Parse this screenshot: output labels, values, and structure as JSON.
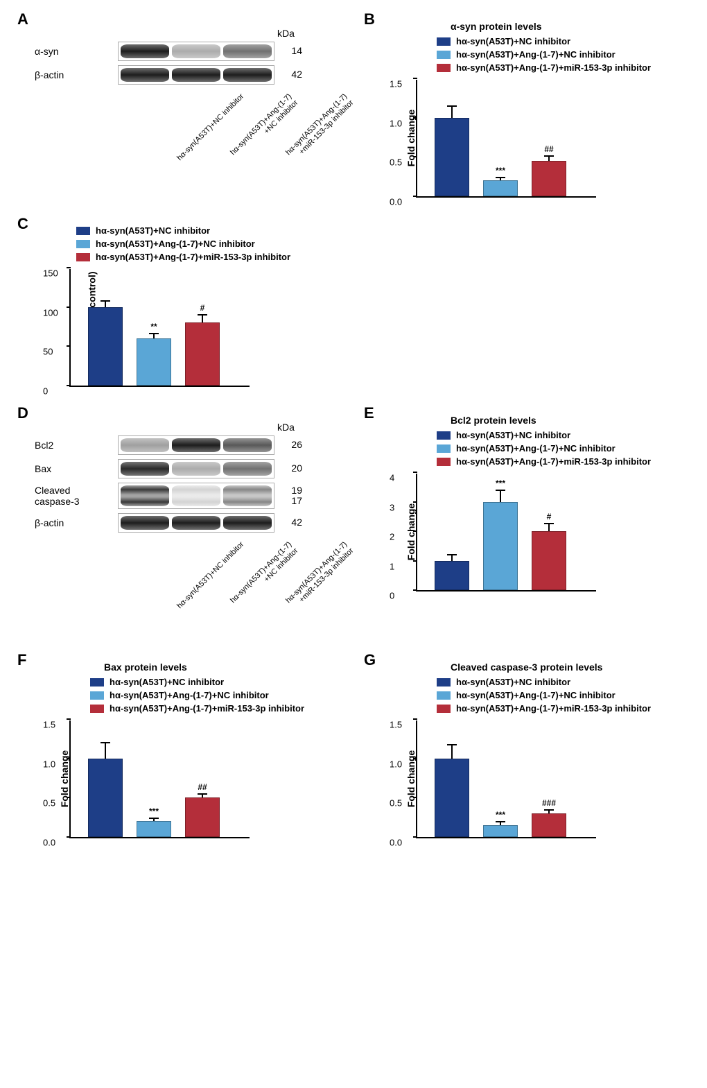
{
  "colors": {
    "group1": "#1e3e87",
    "group2": "#5aa6d6",
    "group3": "#b42e3a"
  },
  "groups": {
    "g1": "hα-syn(A53T)+NC inhibitor",
    "g2": "hα-syn(A53T)+Ang-(1-7)+NC inhibitor",
    "g3": "hα-syn(A53T)+Ang-(1-7)+miR-153-3p inhibitor"
  },
  "blot_lane_labels": {
    "l1a": "hα-syn(A53T)+NC inhibitor",
    "l2a": "hα-syn(A53T)+Ang-(1-7)",
    "l2b": "+NC inhibitor",
    "l3a": "hα-syn(A53T)+Ang-(1-7)",
    "l3b": "+miR-153-3p inhibitor"
  },
  "panelA": {
    "label": "A",
    "kda_header": "kDa",
    "rows": [
      {
        "name": "α-syn",
        "kda": "14",
        "intensities": [
          0.95,
          0.35,
          0.6
        ]
      },
      {
        "name": "β-actin",
        "kda": "42",
        "intensities": [
          0.95,
          0.95,
          0.95
        ]
      }
    ]
  },
  "panelB": {
    "label": "B",
    "title": "α-syn protein levels",
    "ylabel": "Fold change",
    "ymax": 1.5,
    "ytick": 0.5,
    "bars": [
      {
        "value": 1.0,
        "err": 0.15,
        "sig": "",
        "colorKey": "group1"
      },
      {
        "value": 0.2,
        "err": 0.04,
        "sig": "***",
        "colorKey": "group2"
      },
      {
        "value": 0.45,
        "err": 0.06,
        "sig": "##",
        "colorKey": "group3"
      }
    ]
  },
  "panelC": {
    "label": "C",
    "title": "",
    "ylabel": "LDH leakage (% control)",
    "ymax": 150,
    "ytick": 50,
    "bars": [
      {
        "value": 100,
        "err": 8,
        "sig": "",
        "colorKey": "group1"
      },
      {
        "value": 60,
        "err": 6,
        "sig": "**",
        "colorKey": "group2"
      },
      {
        "value": 80,
        "err": 10,
        "sig": "#",
        "colorKey": "group3"
      }
    ]
  },
  "panelD": {
    "label": "D",
    "kda_header": "kDa",
    "rows": [
      {
        "name": "Bcl2",
        "kda": "26",
        "intensities": [
          0.4,
          0.95,
          0.7
        ]
      },
      {
        "name": "Bax",
        "kda": "20",
        "intensities": [
          0.9,
          0.35,
          0.6
        ]
      },
      {
        "name": "Cleaved caspase-3",
        "kda": "19\n17",
        "intensities": [
          0.9,
          0.2,
          0.55
        ],
        "double": true
      },
      {
        "name": "β-actin",
        "kda": "42",
        "intensities": [
          0.95,
          0.95,
          0.95
        ]
      }
    ]
  },
  "panelE": {
    "label": "E",
    "title": "Bcl2 protein levels",
    "ylabel": "Fold change",
    "ymax": 4,
    "ytick": 1,
    "bars": [
      {
        "value": 1.0,
        "err": 0.2,
        "sig": "",
        "colorKey": "group1"
      },
      {
        "value": 3.0,
        "err": 0.4,
        "sig": "***",
        "colorKey": "group2"
      },
      {
        "value": 2.0,
        "err": 0.25,
        "sig": "#",
        "colorKey": "group3"
      }
    ]
  },
  "panelF": {
    "label": "F",
    "title": "Bax protein levels",
    "ylabel": "Fold change",
    "ymax": 1.5,
    "ytick": 0.5,
    "bars": [
      {
        "value": 1.0,
        "err": 0.2,
        "sig": "",
        "colorKey": "group1"
      },
      {
        "value": 0.2,
        "err": 0.04,
        "sig": "***",
        "colorKey": "group2"
      },
      {
        "value": 0.5,
        "err": 0.05,
        "sig": "##",
        "colorKey": "group3"
      }
    ]
  },
  "panelG": {
    "label": "G",
    "title": "Cleaved caspase-3 protein levels",
    "ylabel": "Fold change",
    "ymax": 1.5,
    "ytick": 0.5,
    "bars": [
      {
        "value": 1.0,
        "err": 0.17,
        "sig": "",
        "colorKey": "group1"
      },
      {
        "value": 0.15,
        "err": 0.04,
        "sig": "***",
        "colorKey": "group2"
      },
      {
        "value": 0.3,
        "err": 0.04,
        "sig": "###",
        "colorKey": "group3"
      }
    ]
  }
}
